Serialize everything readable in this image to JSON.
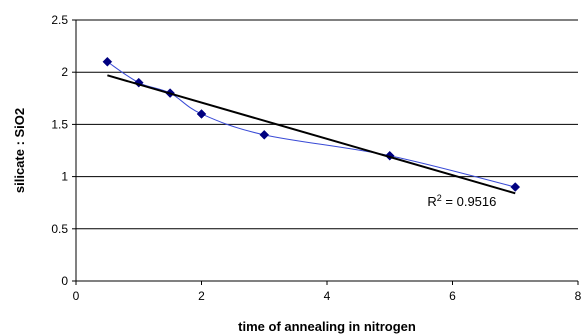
{
  "chart_data": {
    "type": "scatter",
    "title": "",
    "xlabel": "time of annealing in nitrogen",
    "ylabel": "silicate : SiO2",
    "xlim": [
      0,
      8
    ],
    "ylim": [
      0,
      2.5
    ],
    "xticks": [
      "0",
      "2",
      "4",
      "6",
      "8"
    ],
    "yticks": [
      "0",
      "0.5",
      "1",
      "1.5",
      "2",
      "2.5"
    ],
    "grid": "horizontal",
    "series": [
      {
        "x": [
          0.5,
          1,
          1.5,
          2,
          3,
          5,
          7
        ],
        "y": [
          2.1,
          1.9,
          1.8,
          1.6,
          1.4,
          1.2,
          0.9
        ],
        "marker": "diamond",
        "color": "#000080",
        "line": "smooth"
      }
    ],
    "trendline": {
      "x": [
        0.5,
        7
      ],
      "y": [
        1.97,
        0.84
      ],
      "color": "#000000"
    },
    "annotation": {
      "prefix": "R",
      "sup": "2",
      "text": " = 0.9516",
      "x": 5.6,
      "y": 0.72
    }
  }
}
